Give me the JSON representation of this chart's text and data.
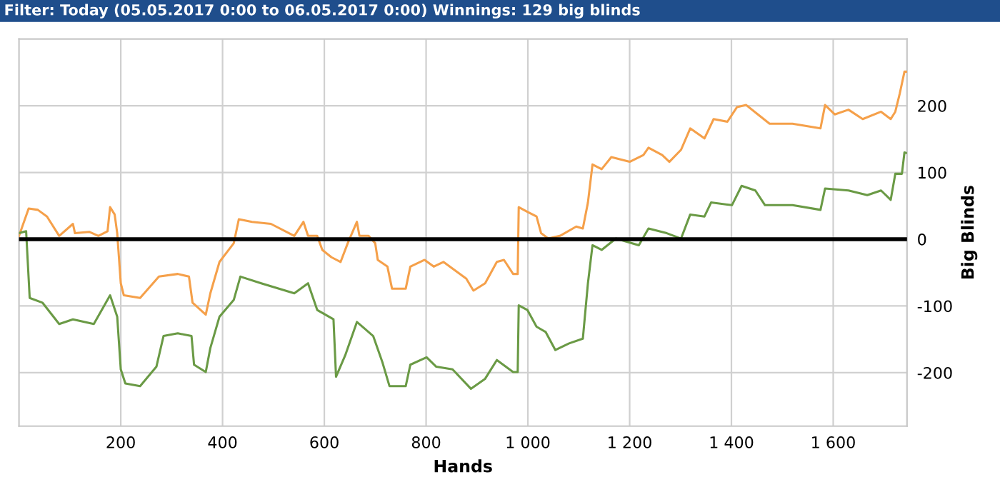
{
  "chart_data": {
    "type": "line",
    "title": "Filter: Today (05.05.2017 0:00 to 06.05.2017 0:00) Winnings: 129 big blinds",
    "xlabel": "Hands",
    "ylabel": "Big Blinds",
    "xlim": [
      0,
      1745
    ],
    "ylim": [
      -280,
      300
    ],
    "xticks": [
      200,
      400,
      600,
      800,
      {
        "value": 1000,
        "label": "1 000"
      },
      {
        "value": 1200,
        "label": "1 200"
      },
      {
        "value": 1400,
        "label": "1 400"
      },
      {
        "value": 1600,
        "label": "1 600"
      }
    ],
    "yticks": [
      -200,
      -100,
      0,
      100,
      200
    ],
    "grid": true,
    "legend": false,
    "line_style": "solid",
    "marker": "none",
    "ref_lines": [
      {
        "axis": "y",
        "value": 0,
        "color": "#000000"
      }
    ],
    "series": [
      {
        "color": "#f5a04a",
        "x": [
          0,
          19,
          37,
          55,
          79,
          106,
          110,
          138,
          156,
          174,
          179,
          188,
          193,
          200,
          206,
          238,
          275,
          312,
          334,
          341,
          367,
          376,
          394,
          422,
          432,
          458,
          495,
          541,
          559,
          568,
          586,
          596,
          614,
          632,
          646,
          664,
          669,
          687,
          700,
          705,
          724,
          733,
          760,
          769,
          797,
          815,
          834,
          879,
          893,
          916,
          939,
          953,
          971,
          980,
          982,
          999,
          1017,
          1026,
          1040,
          1063,
          1095,
          1108,
          1118,
          1127,
          1145,
          1164,
          1200,
          1227,
          1237,
          1264,
          1278,
          1301,
          1319,
          1347,
          1365,
          1392,
          1411,
          1429,
          1452,
          1475,
          1520,
          1575,
          1584,
          1603,
          1630,
          1658,
          1694,
          1713,
          1722,
          1731,
          1740,
          1745
        ],
        "values": [
          5,
          46,
          44,
          34,
          5,
          23,
          9,
          11,
          5,
          12,
          48,
          37,
          9,
          -66,
          -84,
          -88,
          -56,
          -52,
          -56,
          -95,
          -113,
          -81,
          -34,
          -6,
          30,
          26,
          23,
          5,
          26,
          5,
          5,
          -16,
          -27,
          -34,
          -6,
          26,
          5,
          5,
          -6,
          -31,
          -41,
          -74,
          -74,
          -41,
          -31,
          -41,
          -34,
          -59,
          -77,
          -66,
          -34,
          -31,
          -52,
          -52,
          48,
          41,
          34,
          9,
          1,
          5,
          19,
          16,
          55,
          112,
          105,
          123,
          116,
          126,
          137,
          126,
          116,
          134,
          166,
          151,
          180,
          176,
          198,
          201,
          187,
          173,
          173,
          166,
          201,
          187,
          194,
          180,
          191,
          180,
          191,
          219,
          251,
          251
        ]
      },
      {
        "color": "#6a9a45",
        "x": [
          0,
          14,
          21,
          46,
          79,
          106,
          147,
          179,
          193,
          200,
          209,
          238,
          270,
          284,
          312,
          339,
          344,
          367,
          376,
          394,
          422,
          435,
          476,
          541,
          568,
          586,
          618,
          623,
          641,
          664,
          696,
          714,
          728,
          760,
          769,
          801,
          820,
          852,
          888,
          916,
          939,
          971,
          980,
          982,
          999,
          1017,
          1035,
          1054,
          1081,
          1108,
          1118,
          1127,
          1145,
          1173,
          1218,
          1237,
          1273,
          1301,
          1319,
          1347,
          1360,
          1401,
          1420,
          1447,
          1466,
          1520,
          1575,
          1584,
          1630,
          1667,
          1694,
          1713,
          1722,
          1735,
          1740,
          1745
        ],
        "values": [
          9,
          12,
          -88,
          -95,
          -127,
          -120,
          -127,
          -84,
          -116,
          -195,
          -216,
          -220,
          -191,
          -145,
          -141,
          -145,
          -188,
          -199,
          -163,
          -116,
          -91,
          -56,
          -66,
          -81,
          -66,
          -106,
          -120,
          -206,
          -174,
          -124,
          -145,
          -184,
          -220,
          -220,
          -188,
          -177,
          -191,
          -195,
          -224,
          -209,
          -181,
          -199,
          -199,
          -99,
          -106,
          -131,
          -139,
          -166,
          -156,
          -149,
          -66,
          -9,
          -16,
          1,
          -9,
          16,
          9,
          1,
          37,
          34,
          55,
          51,
          80,
          73,
          51,
          51,
          44,
          76,
          73,
          66,
          73,
          59,
          98,
          98,
          130,
          129
        ]
      }
    ]
  }
}
